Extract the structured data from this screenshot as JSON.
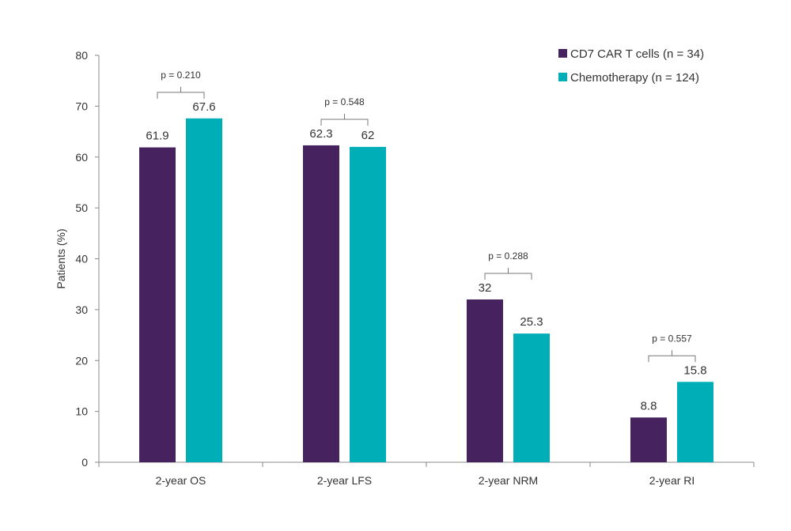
{
  "chart_data": {
    "type": "bar",
    "title": "",
    "xlabel": "",
    "ylabel": "Patients (%)",
    "ylim": [
      0,
      80
    ],
    "yticks": [
      0,
      10,
      20,
      30,
      40,
      50,
      60,
      70,
      80
    ],
    "grid": false,
    "legend_position": "top-right",
    "categories": [
      "2-year OS",
      "2-year LFS",
      "2-year NRM",
      "2-year RI"
    ],
    "series": [
      {
        "name": "CD7 CAR T cells (n = 34)",
        "color": "#46235F",
        "values": [
          61.9,
          62.3,
          32,
          8.8
        ],
        "labels": [
          "61.9",
          "62.3",
          "32",
          "8.8"
        ]
      },
      {
        "name": "Chemotherapy (n = 124)",
        "color": "#00AEB8",
        "values": [
          67.6,
          62,
          25.3,
          15.8
        ],
        "labels": [
          "67.6",
          "62",
          "25.3",
          "15.8"
        ]
      }
    ],
    "annotations": [
      "p = 0.210",
      "p = 0.548",
      "p = 0.288",
      "p = 0.557"
    ]
  }
}
